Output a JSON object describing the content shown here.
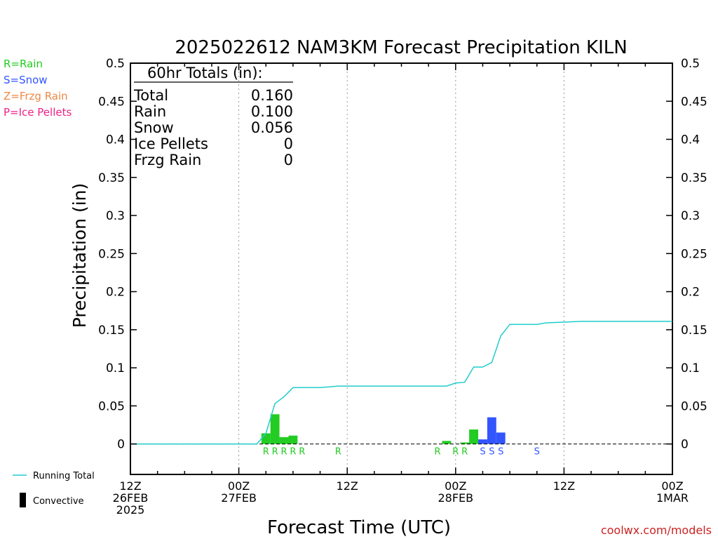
{
  "chart_data": {
    "type": "bar",
    "title": "2025022612 NAM3KM Forecast Precipitation KILN",
    "ylabel": "Precipitation (in)",
    "xlabel": "Forecast Time (UTC)",
    "ylim": [
      -0.04,
      0.5
    ],
    "xlim_hours": [
      0,
      60
    ],
    "y_ticks": [
      0,
      0.05,
      0.1,
      0.15,
      0.2,
      0.25,
      0.3,
      0.35,
      0.4,
      0.45,
      0.5
    ],
    "y_tick_labels": [
      "0",
      "0.05",
      "0.1",
      "0.15",
      "0.2",
      "0.25",
      "0.3",
      "0.35",
      "0.4",
      "0.45",
      "0.5"
    ],
    "x_ticks": [
      {
        "hour": 0,
        "lines": [
          "12Z",
          "26FEB",
          "2025"
        ]
      },
      {
        "hour": 12,
        "lines": [
          "00Z",
          "27FEB"
        ]
      },
      {
        "hour": 24,
        "lines": [
          "12Z"
        ]
      },
      {
        "hour": 36,
        "lines": [
          "00Z",
          "28FEB"
        ]
      },
      {
        "hour": 48,
        "lines": [
          "12Z"
        ]
      },
      {
        "hour": 60,
        "lines": [
          "00Z",
          "1MAR"
        ]
      }
    ],
    "grid_verticals_hours": [
      12,
      24,
      36,
      48
    ],
    "legend": {
      "precip_types": [
        {
          "label": "R=Rain",
          "color": "#22cc22"
        },
        {
          "label": "S=Snow",
          "color": "#3355ff"
        },
        {
          "label": "Z=Frzg Rain",
          "color": "#ee8844"
        },
        {
          "label": "P=Ice Pellets",
          "color": "#ee2288"
        }
      ],
      "running_total_label": "Running Total",
      "convective_label": "Convective"
    },
    "totals_box": {
      "header": "60hr Totals (in):",
      "rows": [
        {
          "label": "Total",
          "value": "0.160"
        },
        {
          "label": "Rain",
          "value": "0.100"
        },
        {
          "label": "Snow",
          "value": "0.056"
        },
        {
          "label": "Ice Pellets",
          "value": "0"
        },
        {
          "label": "Frzg Rain",
          "value": "0"
        }
      ]
    },
    "bars": [
      {
        "hour": 15,
        "value": 0.014,
        "type": "R"
      },
      {
        "hour": 16,
        "value": 0.039,
        "type": "R"
      },
      {
        "hour": 17,
        "value": 0.009,
        "type": "R"
      },
      {
        "hour": 18,
        "value": 0.011,
        "type": "R"
      },
      {
        "hour": 35,
        "value": 0.004,
        "type": "R"
      },
      {
        "hour": 37,
        "value": 0.002,
        "type": "R"
      },
      {
        "hour": 38,
        "value": 0.019,
        "type": "R"
      },
      {
        "hour": 39,
        "value": 0.006,
        "type": "S"
      },
      {
        "hour": 40,
        "value": 0.035,
        "type": "S"
      },
      {
        "hour": 41,
        "value": 0.015,
        "type": "S"
      }
    ],
    "type_markers": [
      {
        "hour": 15,
        "label": "R"
      },
      {
        "hour": 16,
        "label": "R"
      },
      {
        "hour": 17,
        "label": "R"
      },
      {
        "hour": 18,
        "label": "R"
      },
      {
        "hour": 19,
        "label": "R"
      },
      {
        "hour": 23,
        "label": "R"
      },
      {
        "hour": 34,
        "label": "R"
      },
      {
        "hour": 36,
        "label": "R"
      },
      {
        "hour": 37,
        "label": "R"
      },
      {
        "hour": 39,
        "label": "S"
      },
      {
        "hour": 40,
        "label": "S"
      },
      {
        "hour": 41,
        "label": "S"
      },
      {
        "hour": 45,
        "label": "S"
      }
    ],
    "running_total": {
      "color": "#22cccc",
      "points": [
        [
          0,
          0
        ],
        [
          14,
          0
        ],
        [
          15,
          0.014
        ],
        [
          16,
          0.053
        ],
        [
          17,
          0.062
        ],
        [
          18,
          0.074
        ],
        [
          21,
          0.074
        ],
        [
          23,
          0.076
        ],
        [
          35,
          0.076
        ],
        [
          36,
          0.08
        ],
        [
          37,
          0.081
        ],
        [
          38,
          0.101
        ],
        [
          39,
          0.101
        ],
        [
          40,
          0.107
        ],
        [
          41,
          0.142
        ],
        [
          42,
          0.157
        ],
        [
          45,
          0.157
        ],
        [
          46,
          0.159
        ],
        [
          48,
          0.16
        ],
        [
          50,
          0.161
        ],
        [
          60,
          0.161
        ]
      ]
    }
  },
  "credit": "coolwx.com/models"
}
